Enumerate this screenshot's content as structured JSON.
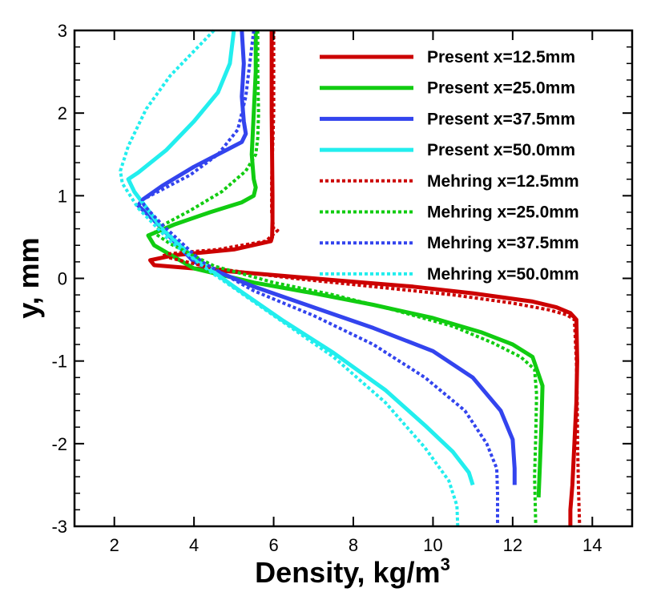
{
  "chart_data": {
    "type": "line",
    "title": "",
    "xlabel": "Density, kg/m",
    "xlabel_superscript": "3",
    "ylabel": "y, mm",
    "xlim": [
      1,
      15
    ],
    "ylim": [
      -3,
      3
    ],
    "xticks": [
      2,
      4,
      6,
      8,
      10,
      12,
      14
    ],
    "xtick_labels": [
      "2",
      "4",
      "6",
      "8",
      "10",
      "12",
      "14"
    ],
    "yticks": [
      -3,
      -2,
      -1,
      0,
      1,
      2,
      3
    ],
    "ytick_labels": [
      "-3",
      "-2",
      "-1",
      "0",
      "1",
      "2",
      "3"
    ],
    "grid": false,
    "legend_position": "top-right",
    "series": [
      {
        "name": "Present x=12.5mm",
        "color": "#cc0000",
        "style": "solid",
        "x": [
          5.95,
          5.95,
          5.97,
          5.97,
          5.96,
          5.93,
          5.0,
          3.5,
          2.9,
          3.0,
          4.0,
          5.5,
          7.5,
          9.5,
          11.0,
          12.5,
          13.1,
          13.45,
          13.6,
          13.62,
          13.6,
          13.55,
          13.5,
          13.45,
          13.45
        ],
        "y": [
          3.0,
          2.0,
          1.0,
          0.7,
          0.5,
          0.45,
          0.35,
          0.28,
          0.22,
          0.16,
          0.12,
          0.06,
          -0.02,
          -0.1,
          -0.18,
          -0.28,
          -0.35,
          -0.42,
          -0.5,
          -1.0,
          -1.5,
          -2.0,
          -2.5,
          -2.8,
          -3.0
        ]
      },
      {
        "name": "Present x=25.0mm",
        "color": "#11cc11",
        "style": "solid",
        "x": [
          5.55,
          5.55,
          5.5,
          5.45,
          5.5,
          5.55,
          5.5,
          5.2,
          4.4,
          3.5,
          2.85,
          3.0,
          4.0,
          5.5,
          7.0,
          8.5,
          10.0,
          11.2,
          12.0,
          12.5,
          12.75,
          12.72,
          12.68,
          12.65
        ],
        "y": [
          3.0,
          2.5,
          2.0,
          1.5,
          1.2,
          1.1,
          1.0,
          0.92,
          0.8,
          0.65,
          0.52,
          0.4,
          0.12,
          -0.05,
          -0.18,
          -0.32,
          -0.48,
          -0.65,
          -0.8,
          -0.95,
          -1.3,
          -1.8,
          -2.3,
          -2.65
        ]
      },
      {
        "name": "Present x=37.5mm",
        "color": "#3344ee",
        "style": "solid",
        "x": [
          5.2,
          5.25,
          5.2,
          5.25,
          5.3,
          5.2,
          4.8,
          4.0,
          3.2,
          2.7,
          2.6,
          3.0,
          4.0,
          5.5,
          7.0,
          8.5,
          10.0,
          11.0,
          11.7,
          12.0,
          12.05,
          12.05
        ],
        "y": [
          3.0,
          2.6,
          2.2,
          1.9,
          1.75,
          1.65,
          1.55,
          1.35,
          1.12,
          0.95,
          0.88,
          0.7,
          0.2,
          -0.1,
          -0.35,
          -0.6,
          -0.88,
          -1.2,
          -1.6,
          -1.95,
          -2.3,
          -2.5
        ]
      },
      {
        "name": "Present x=50.0mm",
        "color": "#22eeee",
        "style": "solid",
        "x": [
          5.0,
          4.9,
          4.6,
          4.0,
          3.3,
          2.6,
          2.35,
          2.5,
          3.2,
          4.0,
          5.0,
          6.2,
          7.5,
          8.8,
          9.8,
          10.5,
          10.9,
          11.0
        ],
        "y": [
          3.0,
          2.6,
          2.25,
          1.9,
          1.55,
          1.28,
          1.2,
          1.05,
          0.6,
          0.25,
          -0.1,
          -0.5,
          -0.9,
          -1.35,
          -1.78,
          -2.1,
          -2.35,
          -2.5
        ]
      },
      {
        "name": "Mehring x=12.5mm",
        "color": "#cc0000",
        "style": "dotted",
        "x": [
          6.0,
          6.0,
          5.95,
          5.95,
          6.0,
          6.1,
          5.8,
          4.6,
          3.4,
          3.2,
          4.5,
          6.5,
          8.5,
          10.5,
          12.0,
          12.9,
          13.35,
          13.55,
          13.6,
          13.62,
          13.63,
          13.65,
          13.68
        ],
        "y": [
          3.0,
          2.0,
          1.2,
          0.8,
          0.6,
          0.58,
          0.45,
          0.35,
          0.3,
          0.27,
          0.12,
          0.0,
          -0.1,
          -0.2,
          -0.3,
          -0.38,
          -0.44,
          -0.5,
          -1.0,
          -1.5,
          -2.0,
          -2.5,
          -3.0
        ]
      },
      {
        "name": "Mehring x=25.0mm",
        "color": "#11cc11",
        "style": "dotted",
        "x": [
          5.6,
          5.6,
          5.62,
          5.6,
          5.55,
          5.3,
          4.7,
          3.9,
          3.2,
          3.0,
          3.4,
          4.5,
          6.0,
          7.5,
          9.0,
          10.5,
          11.5,
          12.2,
          12.55,
          12.6,
          12.58,
          12.55,
          12.58
        ],
        "y": [
          3.0,
          2.5,
          2.0,
          1.7,
          1.5,
          1.3,
          1.05,
          0.82,
          0.64,
          0.55,
          0.42,
          0.15,
          -0.05,
          -0.2,
          -0.38,
          -0.58,
          -0.78,
          -0.95,
          -1.1,
          -1.4,
          -1.9,
          -2.4,
          -3.0
        ]
      },
      {
        "name": "Mehring x=37.5mm",
        "color": "#3344ee",
        "style": "dotted",
        "x": [
          5.5,
          5.4,
          5.3,
          5.1,
          4.6,
          3.9,
          3.1,
          2.7,
          2.75,
          3.2,
          4.2,
          5.5,
          7.0,
          8.5,
          9.8,
          10.8,
          11.35,
          11.6,
          11.62,
          11.62
        ],
        "y": [
          3.0,
          2.6,
          2.2,
          1.8,
          1.5,
          1.25,
          1.05,
          0.95,
          0.88,
          0.65,
          0.2,
          -0.15,
          -0.45,
          -0.8,
          -1.2,
          -1.6,
          -2.0,
          -2.3,
          -2.6,
          -3.0
        ]
      },
      {
        "name": "Mehring x=50.0mm",
        "color": "#22eeee",
        "style": "dotted",
        "x": [
          4.5,
          4.0,
          3.4,
          2.8,
          2.35,
          2.15,
          2.2,
          2.6,
          3.4,
          4.5,
          6.0,
          7.5,
          8.8,
          9.8,
          10.4,
          10.6,
          10.62
        ],
        "y": [
          3.0,
          2.75,
          2.45,
          2.05,
          1.6,
          1.3,
          1.15,
          0.85,
          0.45,
          0.05,
          -0.45,
          -0.95,
          -1.5,
          -2.05,
          -2.45,
          -2.75,
          -3.0
        ]
      }
    ]
  }
}
